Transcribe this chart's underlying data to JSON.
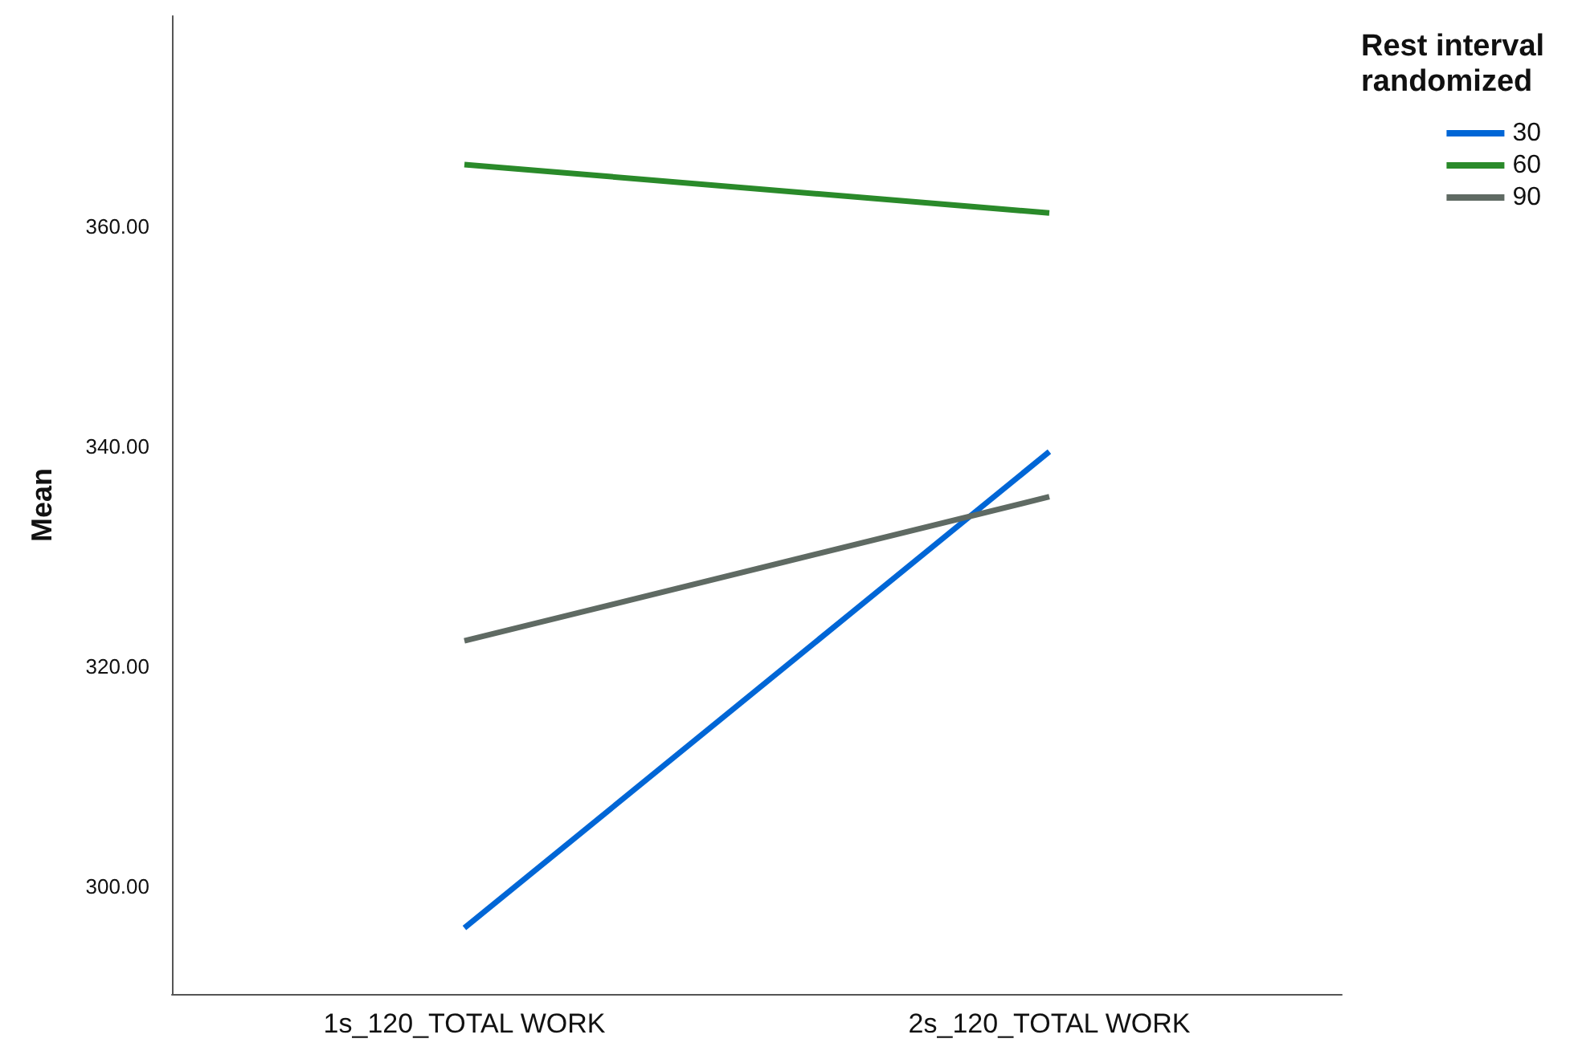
{
  "chart_data": {
    "type": "line",
    "ylabel": "Mean",
    "legend_title": "Rest interval randomized",
    "categories": [
      "1s_120_TOTAL WORK",
      "2s_120_TOTAL WORK"
    ],
    "series": [
      {
        "name": "30",
        "color": "#0066d6",
        "values": [
          296.2,
          339.5
        ]
      },
      {
        "name": "60",
        "color": "#2a8a2a",
        "values": [
          365.6,
          361.2
        ]
      },
      {
        "name": "90",
        "color": "#5f6a63",
        "values": [
          322.3,
          335.4
        ]
      }
    ],
    "ylim": [
      290.2,
      379.1
    ],
    "yticks": [
      {
        "value": 300,
        "label": "300.00"
      },
      {
        "value": 320,
        "label": "320.00"
      },
      {
        "value": 340,
        "label": "340.00"
      },
      {
        "value": 360,
        "label": "360.00"
      }
    ],
    "grid": false,
    "legend": "top right",
    "marker": "none",
    "line_style": "solid"
  }
}
